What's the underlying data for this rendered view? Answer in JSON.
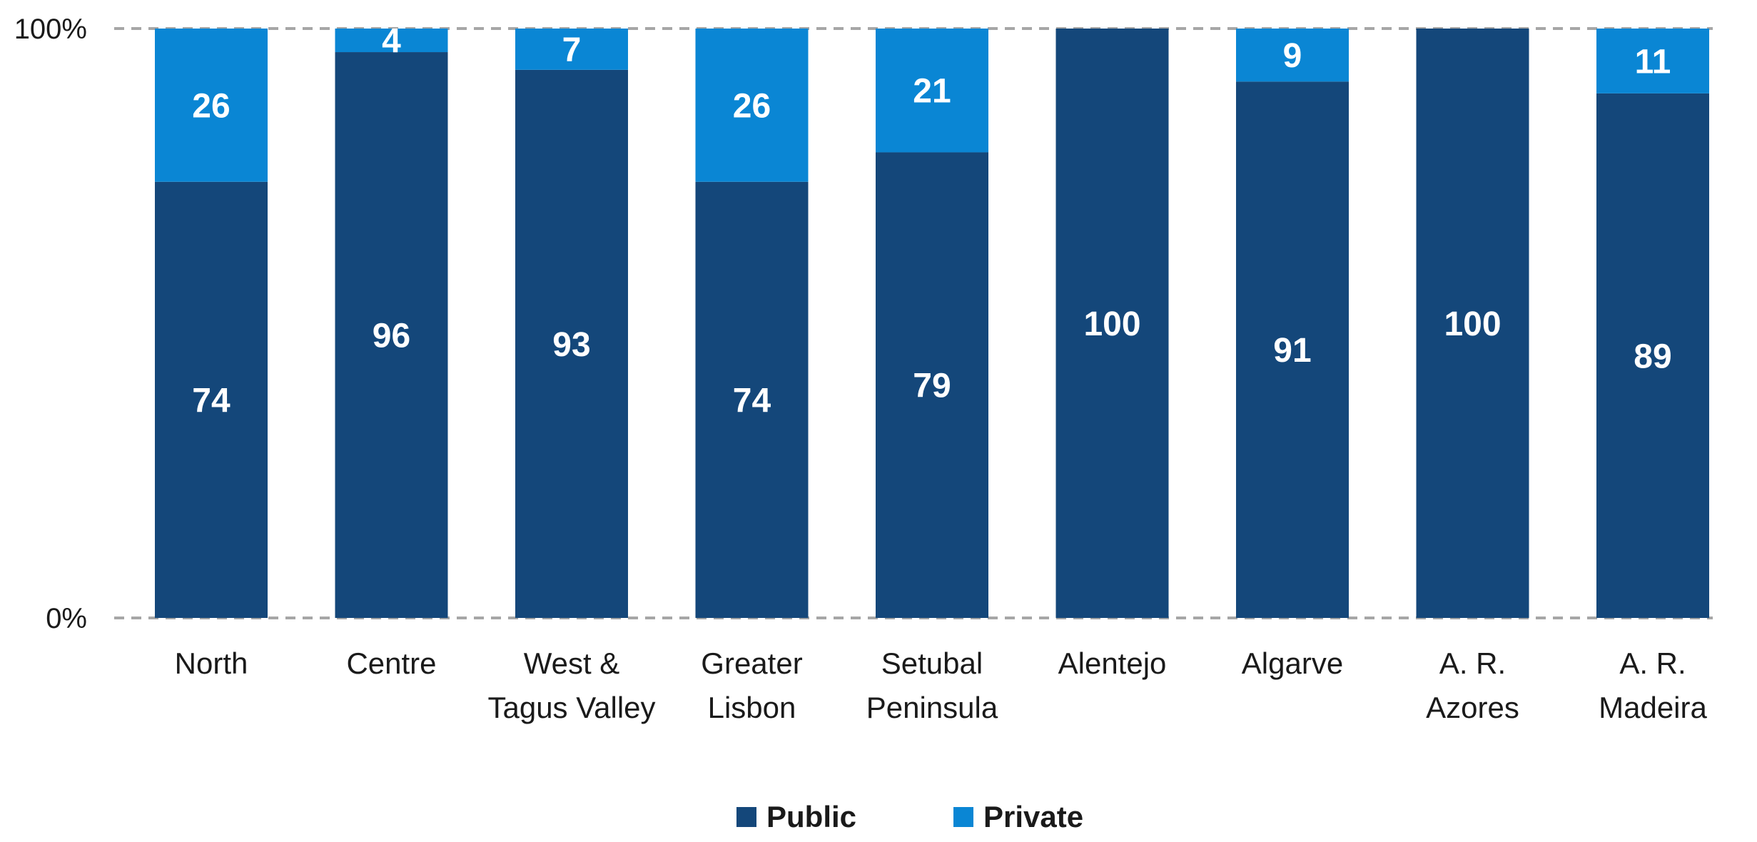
{
  "chart_data": {
    "type": "bar",
    "stacked": true,
    "categories": [
      [
        "North"
      ],
      [
        "Centre"
      ],
      [
        "West &",
        "Tagus Valley"
      ],
      [
        "Greater",
        "Lisbon"
      ],
      [
        "Setubal",
        "Peninsula"
      ],
      [
        "Alentejo"
      ],
      [
        "Algarve"
      ],
      [
        "A. R.",
        "Azores"
      ],
      [
        "A. R.",
        "Madeira"
      ]
    ],
    "series": [
      {
        "name": "Public",
        "color": "#14477a",
        "values": [
          74,
          96,
          93,
          74,
          79,
          100,
          91,
          100,
          89
        ],
        "labels": [
          "74",
          "96",
          "93",
          "74",
          "79",
          "100",
          "91",
          "100",
          "89"
        ]
      },
      {
        "name": "Private",
        "color": "#0a86d4",
        "values": [
          26,
          4,
          7,
          26,
          21,
          0,
          9,
          0,
          11
        ],
        "labels": [
          "26",
          "4",
          "7",
          "26",
          "21",
          "",
          "9",
          "",
          "11"
        ]
      }
    ],
    "ylim": [
      0,
      100
    ],
    "yticks": [
      {
        "value": 0,
        "label": "0%"
      },
      {
        "value": 100,
        "label": "100%"
      }
    ],
    "gridlines": "dashed at 0% and 100%",
    "legend_position": "bottom"
  }
}
